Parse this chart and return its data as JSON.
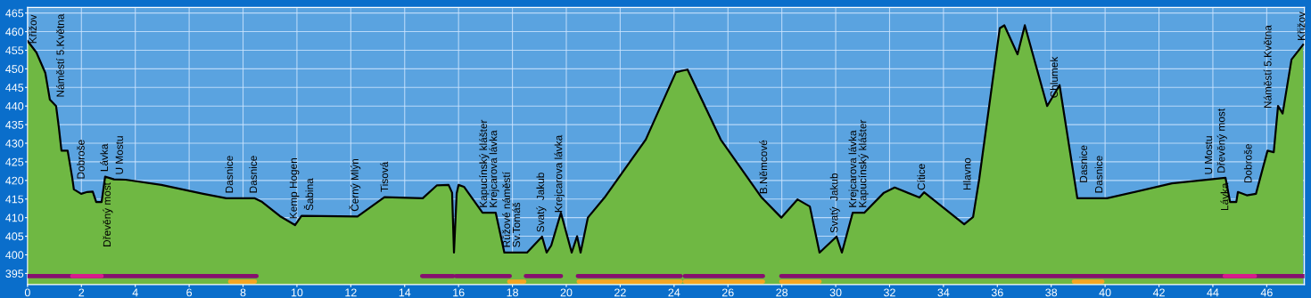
{
  "chart_data": {
    "type": "area",
    "xlim": [
      0,
      47.4
    ],
    "ylim": [
      392,
      466.5
    ],
    "xticks": [
      0,
      2,
      4,
      6,
      8,
      10,
      12,
      14,
      16,
      18,
      20,
      22,
      24,
      26,
      28,
      30,
      32,
      34,
      36,
      38,
      40,
      42,
      44,
      46
    ],
    "yticks": [
      395,
      400,
      405,
      410,
      415,
      420,
      425,
      430,
      435,
      440,
      445,
      450,
      455,
      460,
      465
    ],
    "grid": true,
    "series": [
      {
        "color": "#6fb843",
        "x": [
          0,
          0.33,
          0.66,
          0.83,
          1.06,
          1.16,
          1.26,
          1.49,
          1.66,
          1.72,
          1.99,
          2.22,
          2.42,
          2.55,
          2.75,
          2.88,
          3.21,
          3.64,
          4.97,
          6.52,
          7.38,
          8.44,
          8.71,
          9.37,
          9.93,
          10.17,
          12.25,
          13.25,
          14.67,
          15.2,
          15.63,
          15.76,
          15.83,
          15.93,
          16.0,
          16.2,
          16.89,
          17.38,
          17.7,
          18.54,
          19.1,
          19.27,
          19.44,
          19.8,
          20.2,
          20.4,
          20.53,
          20.8,
          21.42,
          22.95,
          24.07,
          24.5,
          25.73,
          27.25,
          27.98,
          28.58,
          29.04,
          29.4,
          30.03,
          30.23,
          30.63,
          31.06,
          31.79,
          32.19,
          33.11,
          33.28,
          34.77,
          35.1,
          35.33,
          36.09,
          36.26,
          36.75,
          37.02,
          37.85,
          38.31,
          38.97,
          40.07,
          42.48,
          44.47,
          44.64,
          44.87,
          44.93,
          45.26,
          45.6,
          46.03,
          46.26,
          46.42,
          46.59,
          46.92,
          47.35
        ],
        "values": [
          457.5,
          454.4,
          448.9,
          441.7,
          440,
          434.4,
          428,
          428,
          420.7,
          417.6,
          416.4,
          416.9,
          417,
          414.2,
          414.2,
          421,
          420.3,
          420.2,
          418.8,
          416.4,
          415.2,
          415.2,
          414.2,
          410.4,
          408,
          410.5,
          410.3,
          415.5,
          415.2,
          418.7,
          418.8,
          416.7,
          400.6,
          416.5,
          418.8,
          418.3,
          411.3,
          411.3,
          400.6,
          400.6,
          404.9,
          400.6,
          402.5,
          411.3,
          400.6,
          405,
          400.6,
          410,
          415.4,
          431,
          449.1,
          449.8,
          431,
          415.4,
          410,
          414.9,
          413,
          400.6,
          404.9,
          400.6,
          411.3,
          411.3,
          416.7,
          418.1,
          415.4,
          416.8,
          408.2,
          410.2,
          420.5,
          460.9,
          461.7,
          453.9,
          461.7,
          440,
          445.6,
          415.2,
          415.2,
          419.2,
          420.7,
          414.2,
          414.2,
          416.9,
          416,
          416.4,
          428,
          427.6,
          440,
          438,
          452.5,
          456.5
        ]
      },
      {
        "type": "line",
        "color": "#86106e",
        "x": [
          0,
          8.5,
          8.6,
          14.65,
          15.8,
          15.85,
          15.9,
          17.9,
          18.2,
          18.5,
          19.8,
          20.1,
          20.43,
          24.24,
          24.3,
          24.4,
          27.3,
          27.6,
          27.98,
          47.4
        ],
        "values": [
          394.3,
          394.3,
          null,
          394.3,
          394.3,
          null,
          394.3,
          394.3,
          null,
          394.3,
          394.3,
          null,
          394.3,
          394.3,
          null,
          394.3,
          394.3,
          null,
          394.3,
          394.3
        ]
      },
      {
        "type": "line",
        "color": "#d81b8c",
        "x": [
          1.66,
          2.75,
          2.9,
          44.44,
          45.56
        ],
        "values": [
          394.3,
          394.3,
          null,
          394.3,
          394.3
        ]
      },
      {
        "type": "line",
        "color": "#f5a623",
        "x": [
          7.52,
          8.44,
          8.6,
          17.88,
          18.44,
          18.6,
          20.46,
          24.24,
          24.3,
          24.4,
          27.3,
          27.6,
          27.98,
          29.4,
          29.6,
          38.84,
          39.9
        ],
        "values": [
          392.8,
          392.8,
          null,
          392.8,
          392.8,
          null,
          392.8,
          392.8,
          null,
          392.8,
          392.8,
          null,
          392.8,
          392.8,
          null,
          392.8,
          392.8
        ]
      }
    ],
    "annotations": [
      {
        "text": "Křižov",
        "x": 0.23,
        "y": 455.4
      },
      {
        "text": "Náměstí 5.Května",
        "x": 0.93,
        "y": 441
      },
      {
        "text": "Dobroše",
        "x": 1.69,
        "y": 419
      },
      {
        "text": "Lávka",
        "x": 2.88,
        "y": 421
      },
      {
        "text": "Dřevěný most",
        "x": 2.98,
        "y": 420.8
      },
      {
        "text": "U Mostu",
        "x": 3.44,
        "y": 420.2
      },
      {
        "text": "Dasnice",
        "x": 7.52,
        "y": 415.2
      },
      {
        "text": "Dasnice",
        "x": 8.41,
        "y": 415.2
      },
      {
        "text": "Kemp Hogen",
        "x": 9.9,
        "y": 408.3
      },
      {
        "text": "Šabina",
        "x": 10.5,
        "y": 410.5
      },
      {
        "text": "Černý Mlýn",
        "x": 12.15,
        "y": 410.3
      },
      {
        "text": "Tisová",
        "x": 13.28,
        "y": 415.5
      },
      {
        "text": "Kapucínský klášter",
        "x": 16.95,
        "y": 411.3
      },
      {
        "text": "Krejcarova lávka",
        "x": 17.32,
        "y": 411.3
      },
      {
        "text": "Růžové náměstí",
        "x": 17.81,
        "y": 400.6
      },
      {
        "text": "Sv.Tomáš",
        "x": 18.18,
        "y": 400.6
      },
      {
        "text": "Svatý  Jakub",
        "x": 19.07,
        "y": 404.7
      },
      {
        "text": "Krejcarova lávka",
        "x": 19.74,
        "y": 410
      },
      {
        "text": "B.Němcové",
        "x": 27.35,
        "y": 415
      },
      {
        "text": "Svatý  Jakub",
        "x": 29.97,
        "y": 404.5
      },
      {
        "text": "Krejcarova lávka",
        "x": 30.66,
        "y": 411.3
      },
      {
        "text": "Kapucínský klášter",
        "x": 31.03,
        "y": 411.3
      },
      {
        "text": "Cítice",
        "x": 33.21,
        "y": 416
      },
      {
        "text": "Hlavno",
        "x": 35.23,
        "y": 416
      },
      {
        "text": "Chlumek",
        "x": 37.82,
        "y": 440.8
      },
      {
        "text": "Dasnice",
        "x": 38.91,
        "y": 418
      },
      {
        "text": "Dasnice",
        "x": 39.8,
        "y": 415.2
      },
      {
        "text": "U Mostu",
        "x": 43.87,
        "y": 420.2
      },
      {
        "text": "Dřevěný most",
        "x": 44.34,
        "y": 420.6
      },
      {
        "text": "Lávka",
        "x": 44.47,
        "y": 420.7
      },
      {
        "text": "Dobroše",
        "x": 45.66,
        "y": 417.9
      },
      {
        "text": "Náměstí 5.Května",
        "x": 46.39,
        "y": 438
      },
      {
        "text": "Křižov",
        "x": 47.32,
        "y": 456.2
      }
    ]
  }
}
